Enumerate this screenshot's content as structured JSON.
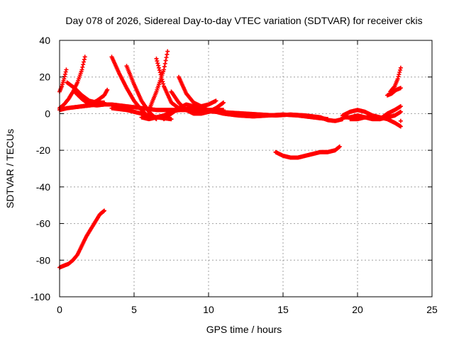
{
  "chart_data": {
    "type": "scatter",
    "title": "Day 078 of 2026, Sidereal Day-to-day VTEC variation (SDTVAR) for receiver ckis",
    "xlabel": "GPS time / hours",
    "ylabel": "SDTVAR / TECUs",
    "xlim": [
      0,
      25
    ],
    "ylim": [
      -100,
      40
    ],
    "x_ticks": [
      0,
      5,
      10,
      15,
      20,
      25
    ],
    "y_ticks": [
      -100,
      -80,
      -60,
      -40,
      -20,
      0,
      20,
      40
    ],
    "grid": true,
    "marker": "+",
    "color": "#ff0000",
    "series": [
      {
        "x": [
          0.0,
          0.3,
          0.6,
          0.9,
          1.2,
          1.5,
          1.8,
          2.1,
          2.4,
          2.7,
          3.0
        ],
        "y": [
          -84,
          -83,
          -82,
          -80,
          -77,
          -72,
          -67,
          -63,
          -59,
          -55,
          -53
        ]
      },
      {
        "x": [
          0.0,
          0.15,
          0.3,
          0.45
        ],
        "y": [
          12,
          15,
          19,
          24
        ]
      },
      {
        "x": [
          0.0,
          0.3,
          0.6,
          0.9,
          1.2,
          1.5,
          1.7
        ],
        "y": [
          3,
          5,
          8,
          12,
          17,
          24,
          31
        ]
      },
      {
        "x": [
          0.0,
          0.5,
          1.0,
          1.5,
          2.0,
          2.5,
          3.0
        ],
        "y": [
          2,
          3,
          3.5,
          4,
          4.5,
          5,
          5.5
        ]
      },
      {
        "x": [
          0.5,
          1.0,
          1.5,
          2.0,
          2.5,
          3.0
        ],
        "y": [
          17,
          14,
          10,
          7,
          6,
          6
        ]
      },
      {
        "x": [
          1.0,
          1.5,
          2.0,
          2.5,
          3.0
        ],
        "y": [
          12,
          8,
          5,
          4.5,
          5
        ]
      },
      {
        "x": [
          2.0,
          2.5,
          3.0,
          3.2
        ],
        "y": [
          5,
          7,
          10,
          13
        ]
      },
      {
        "x": [
          1.5,
          2.5,
          3.5,
          4.5,
          5.5,
          6.5,
          7.5,
          8.5,
          9.5,
          10.5,
          11.5,
          12.5,
          13.5,
          14.5,
          15.5,
          16.5,
          17.5,
          18.0,
          18.5,
          19.0
        ],
        "y": [
          4,
          5,
          5,
          4,
          3,
          2,
          2,
          2,
          1.5,
          1,
          0.5,
          0,
          -0.5,
          -1,
          -0.5,
          -1,
          -2,
          -3.5,
          -4,
          -3
        ]
      },
      {
        "x": [
          3.5,
          4.0,
          4.5,
          5.0,
          5.5,
          6.0
        ],
        "y": [
          31,
          22,
          14,
          7,
          2,
          -2
        ]
      },
      {
        "x": [
          4.5,
          5.0,
          5.5,
          6.0,
          6.5
        ],
        "y": [
          26,
          16,
          7,
          1,
          -3
        ]
      },
      {
        "x": [
          3.5,
          4.5,
          5.5,
          6.5,
          7.5
        ],
        "y": [
          3,
          2,
          0,
          -2,
          -3
        ]
      },
      {
        "x": [
          5.5,
          6.0,
          6.5,
          7.0,
          7.5,
          8.0,
          8.5,
          9.0,
          9.5,
          10.0
        ],
        "y": [
          -2,
          -3,
          -2,
          -1,
          1,
          2,
          2.5,
          3,
          2,
          1
        ]
      },
      {
        "x": [
          6.5,
          7.0,
          7.5,
          8.0
        ],
        "y": [
          30,
          15,
          6,
          3
        ]
      },
      {
        "x": [
          6.0,
          6.5,
          7.0,
          7.25
        ],
        "y": [
          2,
          12,
          24,
          34
        ]
      },
      {
        "x": [
          7.0,
          7.5,
          8.0,
          8.5,
          9.0,
          9.5,
          10.0,
          10.5,
          11.0
        ],
        "y": [
          -3,
          0,
          3,
          5,
          4,
          3,
          2,
          2,
          2
        ]
      },
      {
        "x": [
          7.5,
          8.0,
          8.5,
          9.0,
          9.5,
          10.0,
          10.5,
          11.0
        ],
        "y": [
          12,
          6,
          2,
          0,
          0,
          1,
          3,
          6
        ]
      },
      {
        "x": [
          8.0,
          8.5,
          9.0,
          9.5,
          10.0,
          10.5
        ],
        "y": [
          20,
          11,
          6,
          4,
          5,
          7
        ]
      },
      {
        "x": [
          9.0,
          10.0,
          11.0,
          12.0,
          13.0,
          14.0,
          15.0,
          16.0,
          17.0,
          18.0
        ],
        "y": [
          3,
          2,
          0,
          -1,
          -1.5,
          -1,
          -0.5,
          -1,
          -2,
          -3
        ]
      },
      {
        "x": [
          14.5,
          15.0,
          15.5,
          16.0,
          16.5,
          17.0,
          17.5,
          18.0,
          18.5,
          18.8
        ],
        "y": [
          -21,
          -23,
          -24,
          -24,
          -23,
          -22,
          -21,
          -21,
          -20,
          -18
        ]
      },
      {
        "x": [
          19.0,
          19.5,
          20.0,
          20.5,
          21.0,
          21.5,
          22.0,
          22.5,
          22.9
        ],
        "y": [
          -1,
          1,
          2,
          1,
          -1,
          -2,
          -3,
          -5,
          -7
        ]
      },
      {
        "x": [
          19.0,
          19.5,
          20.0,
          20.5,
          21.0,
          21.5,
          22.0,
          22.5,
          22.9
        ],
        "y": [
          -2,
          -2,
          -1,
          -2,
          -2,
          -3,
          0,
          2,
          4
        ]
      },
      {
        "x": [
          19.5,
          20.0,
          20.5,
          21.0,
          21.5,
          22.0,
          22.5,
          22.9
        ],
        "y": [
          -3,
          -3,
          -2,
          -3,
          -3,
          -2,
          -1,
          1
        ]
      },
      {
        "x": [
          22.0,
          22.3,
          22.6,
          22.9
        ],
        "y": [
          10,
          11,
          13,
          14
        ]
      },
      {
        "x": [
          22.2,
          22.5,
          22.7,
          22.9
        ],
        "y": [
          12,
          15,
          19,
          25
        ]
      },
      {
        "x": [
          22.9
        ],
        "y": [
          -4
        ]
      }
    ]
  }
}
